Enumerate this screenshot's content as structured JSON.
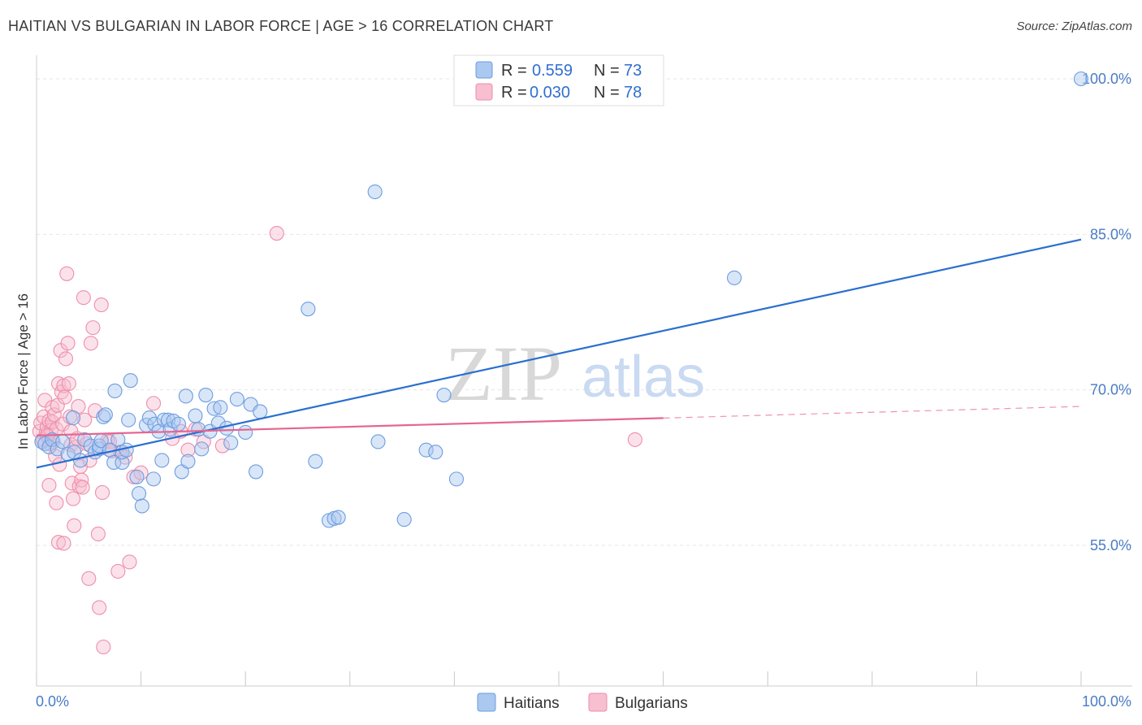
{
  "title": "HAITIAN VS BULGARIAN IN LABOR FORCE | AGE > 16 CORRELATION CHART",
  "source": "Source: ZipAtlas.com",
  "watermark": {
    "zip": "ZIP",
    "atlas": "atlas"
  },
  "legend": {
    "r_label": "R =",
    "n_label": "N =",
    "entries": [
      {
        "r": "0.559",
        "n": "73"
      },
      {
        "r": "0.030",
        "n": "78"
      }
    ]
  },
  "colors": {
    "haitians_fill": "#aac8f0",
    "haitians_stroke": "#6d9de0",
    "haitians_line": "#2a6fd0",
    "bulgarians_fill": "#f7bfd0",
    "bulgarians_stroke": "#ee8eab",
    "bulgarians_line": "#e46690",
    "grid": "#e6e6e6",
    "axis_text": "#4a7cc4"
  },
  "chart_data": {
    "type": "scatter",
    "title": "HAITIAN VS BULGARIAN IN LABOR FORCE | AGE > 16 CORRELATION CHART",
    "xlabel": "",
    "ylabel": "In Labor Force | Age > 16",
    "xlim": [
      0,
      100
    ],
    "ylim": [
      41,
      102
    ],
    "x_tick_labels": [
      "0.0%",
      "100.0%"
    ],
    "y_ticks": [
      55,
      70,
      85,
      100
    ],
    "y_tick_labels": [
      "55.0%",
      "70.0%",
      "85.0%",
      "100.0%"
    ],
    "grid": true,
    "series": [
      {
        "name": "Haitians",
        "trend": {
          "x0": 0,
          "y0": 62.5,
          "x1": 100,
          "y1": 84.5,
          "dashed_from": null
        },
        "points": [
          [
            0.5,
            65.0
          ],
          [
            0.8,
            64.8
          ],
          [
            1.2,
            64.5
          ],
          [
            1.5,
            65.2
          ],
          [
            2.0,
            64.3
          ],
          [
            2.5,
            65.0
          ],
          [
            3.0,
            63.8
          ],
          [
            3.5,
            67.3
          ],
          [
            3.6,
            64.0
          ],
          [
            4.2,
            63.2
          ],
          [
            4.6,
            65.2
          ],
          [
            5.2,
            64.6
          ],
          [
            5.6,
            64.0
          ],
          [
            6.0,
            64.3
          ],
          [
            6.0,
            64.6
          ],
          [
            6.2,
            65.1
          ],
          [
            6.4,
            67.4
          ],
          [
            6.6,
            67.6
          ],
          [
            7.0,
            64.2
          ],
          [
            7.4,
            63.0
          ],
          [
            7.5,
            69.9
          ],
          [
            7.8,
            65.2
          ],
          [
            8.2,
            63.0
          ],
          [
            8.2,
            64.0
          ],
          [
            8.6,
            64.2
          ],
          [
            8.8,
            67.1
          ],
          [
            9.0,
            70.9
          ],
          [
            9.6,
            61.6
          ],
          [
            9.8,
            60.0
          ],
          [
            10.1,
            58.8
          ],
          [
            10.5,
            66.6
          ],
          [
            10.8,
            67.3
          ],
          [
            11.2,
            61.4
          ],
          [
            11.3,
            66.7
          ],
          [
            11.7,
            66.0
          ],
          [
            12.0,
            63.2
          ],
          [
            12.2,
            67.1
          ],
          [
            12.6,
            67.1
          ],
          [
            12.8,
            66.2
          ],
          [
            13.1,
            67.0
          ],
          [
            13.6,
            66.7
          ],
          [
            13.9,
            62.1
          ],
          [
            14.3,
            69.4
          ],
          [
            14.5,
            63.1
          ],
          [
            15.2,
            67.5
          ],
          [
            15.5,
            66.2
          ],
          [
            15.8,
            64.3
          ],
          [
            16.2,
            69.5
          ],
          [
            16.6,
            66.0
          ],
          [
            17.0,
            68.2
          ],
          [
            17.4,
            66.8
          ],
          [
            17.6,
            68.3
          ],
          [
            18.2,
            66.3
          ],
          [
            18.6,
            64.9
          ],
          [
            19.2,
            69.1
          ],
          [
            20.0,
            65.9
          ],
          [
            20.5,
            68.6
          ],
          [
            21.0,
            62.1
          ],
          [
            21.4,
            67.9
          ],
          [
            26.0,
            77.8
          ],
          [
            26.7,
            63.1
          ],
          [
            28.0,
            57.4
          ],
          [
            28.5,
            57.6
          ],
          [
            28.9,
            57.7
          ],
          [
            32.4,
            89.1
          ],
          [
            32.7,
            65.0
          ],
          [
            35.2,
            57.5
          ],
          [
            37.3,
            64.2
          ],
          [
            38.2,
            64.0
          ],
          [
            39.0,
            69.5
          ],
          [
            40.2,
            61.4
          ],
          [
            66.8,
            80.8
          ],
          [
            100.0,
            100.0
          ]
        ]
      },
      {
        "name": "Bulgarians",
        "trend": {
          "x0": 0,
          "y0": 65.6,
          "x1": 100,
          "y1": 68.4,
          "dashed_from": 60
        },
        "points": [
          [
            0.3,
            66.0
          ],
          [
            0.4,
            66.8
          ],
          [
            0.6,
            65.2
          ],
          [
            0.7,
            67.4
          ],
          [
            0.8,
            69.0
          ],
          [
            0.9,
            65.8
          ],
          [
            1.0,
            66.4
          ],
          [
            1.1,
            65.5
          ],
          [
            1.2,
            67.0
          ],
          [
            1.2,
            60.8
          ],
          [
            1.3,
            64.8
          ],
          [
            1.4,
            66.1
          ],
          [
            1.5,
            68.3
          ],
          [
            1.5,
            66.9
          ],
          [
            1.6,
            65.0
          ],
          [
            1.7,
            67.6
          ],
          [
            1.8,
            63.6
          ],
          [
            1.9,
            66.2
          ],
          [
            1.9,
            59.1
          ],
          [
            2.0,
            68.5
          ],
          [
            2.1,
            55.3
          ],
          [
            2.1,
            70.6
          ],
          [
            2.2,
            62.8
          ],
          [
            2.3,
            73.8
          ],
          [
            2.4,
            69.8
          ],
          [
            2.5,
            66.7
          ],
          [
            2.6,
            70.4
          ],
          [
            2.6,
            55.2
          ],
          [
            2.7,
            69.3
          ],
          [
            2.8,
            73.0
          ],
          [
            2.9,
            81.2
          ],
          [
            3.0,
            74.5
          ],
          [
            3.1,
            70.6
          ],
          [
            3.2,
            67.4
          ],
          [
            3.3,
            66.0
          ],
          [
            3.3,
            64.7
          ],
          [
            3.4,
            61.0
          ],
          [
            3.5,
            59.5
          ],
          [
            3.6,
            56.9
          ],
          [
            3.8,
            64.5
          ],
          [
            3.9,
            65.3
          ],
          [
            4.0,
            68.4
          ],
          [
            4.1,
            60.7
          ],
          [
            4.2,
            62.6
          ],
          [
            4.3,
            61.3
          ],
          [
            4.4,
            60.6
          ],
          [
            4.5,
            78.9
          ],
          [
            4.6,
            67.1
          ],
          [
            4.8,
            64.8
          ],
          [
            5.0,
            51.8
          ],
          [
            5.1,
            63.2
          ],
          [
            5.2,
            74.5
          ],
          [
            5.4,
            76.0
          ],
          [
            5.6,
            68.0
          ],
          [
            5.9,
            56.1
          ],
          [
            6.0,
            49.0
          ],
          [
            6.2,
            78.2
          ],
          [
            6.3,
            60.1
          ],
          [
            6.4,
            45.2
          ],
          [
            6.8,
            65.1
          ],
          [
            7.0,
            65.0
          ],
          [
            7.2,
            64.1
          ],
          [
            7.8,
            52.5
          ],
          [
            8.0,
            64.0
          ],
          [
            8.5,
            63.5
          ],
          [
            8.9,
            53.4
          ],
          [
            9.3,
            61.6
          ],
          [
            10.0,
            62.0
          ],
          [
            11.2,
            68.7
          ],
          [
            13.0,
            65.3
          ],
          [
            13.8,
            66.0
          ],
          [
            14.5,
            64.2
          ],
          [
            15.2,
            66.2
          ],
          [
            16.0,
            65.0
          ],
          [
            17.8,
            64.6
          ],
          [
            23.0,
            85.1
          ],
          [
            57.3,
            65.2
          ],
          [
            1.0,
            65.6
          ]
        ]
      }
    ],
    "bottom_legend": [
      "Haitians",
      "Bulgarians"
    ]
  }
}
